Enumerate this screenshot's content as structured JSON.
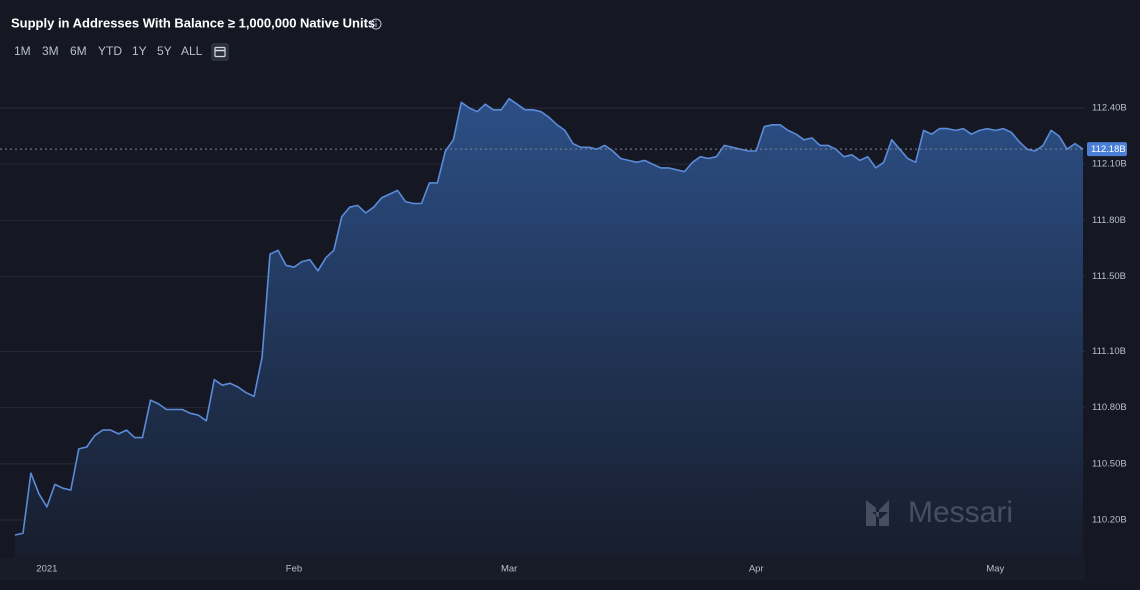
{
  "title": "Supply in Addresses With Balance ≥ 1,000,000 Native Units",
  "range_buttons": [
    "1M",
    "3M",
    "6M",
    "YTD",
    "1Y",
    "5Y",
    "ALL"
  ],
  "watermark": "Messari",
  "chart_data": {
    "type": "area",
    "color": "#5b8bd8",
    "grid": true,
    "ylim": [
      110.0,
      112.6
    ],
    "yticks": [
      {
        "value": 110.2,
        "label": "110.20B"
      },
      {
        "value": 110.5,
        "label": "110.50B"
      },
      {
        "value": 110.8,
        "label": "110.80B"
      },
      {
        "value": 111.1,
        "label": "111.10B"
      },
      {
        "value": 111.5,
        "label": "111.50B"
      },
      {
        "value": 111.8,
        "label": "111.80B"
      },
      {
        "value": 112.1,
        "label": "112.10B"
      },
      {
        "value": 112.4,
        "label": "112.40B"
      }
    ],
    "current_label": {
      "value": 112.18,
      "label": "112.18B"
    },
    "categories": [
      null,
      null,
      null,
      null,
      "2021",
      null,
      null,
      null,
      null,
      null,
      null,
      null,
      null,
      null,
      null,
      null,
      null,
      null,
      null,
      null,
      null,
      null,
      null,
      null,
      null,
      null,
      null,
      null,
      null,
      null,
      null,
      null,
      null,
      null,
      null,
      "Feb",
      null,
      null,
      null,
      null,
      null,
      null,
      null,
      null,
      null,
      null,
      null,
      null,
      null,
      null,
      null,
      null,
      null,
      null,
      null,
      null,
      null,
      null,
      null,
      null,
      null,
      null,
      "Mar",
      null,
      null,
      null,
      null,
      null,
      null,
      null,
      null,
      null,
      null,
      null,
      null,
      null,
      null,
      null,
      null,
      null,
      null,
      null,
      null,
      null,
      null,
      null,
      null,
      null,
      null,
      null,
      null,
      null,
      null,
      "Apr",
      null,
      null,
      null,
      null,
      null,
      null,
      null,
      null,
      null,
      null,
      null,
      null,
      null,
      null,
      null,
      null,
      null,
      null,
      null,
      null,
      null,
      null,
      null,
      null,
      null,
      null,
      null,
      null,
      null,
      "May",
      null,
      null,
      null,
      null,
      null,
      null,
      null,
      null,
      null,
      null,
      null
    ],
    "values": [
      110.12,
      110.13,
      110.45,
      110.34,
      110.27,
      110.39,
      110.37,
      110.36,
      110.58,
      110.59,
      110.65,
      110.68,
      110.68,
      110.66,
      110.68,
      110.64,
      110.64,
      110.84,
      110.82,
      110.79,
      110.79,
      110.79,
      110.77,
      110.76,
      110.73,
      110.95,
      110.92,
      110.93,
      110.91,
      110.88,
      110.86,
      111.07,
      111.62,
      111.64,
      111.56,
      111.55,
      111.58,
      111.59,
      111.53,
      111.6,
      111.64,
      111.82,
      111.87,
      111.88,
      111.84,
      111.87,
      111.92,
      111.94,
      111.96,
      111.9,
      111.89,
      111.89,
      112.0,
      112.0,
      112.17,
      112.23,
      112.43,
      112.4,
      112.38,
      112.42,
      112.39,
      112.39,
      112.45,
      112.42,
      112.39,
      112.39,
      112.38,
      112.35,
      112.31,
      112.28,
      112.21,
      112.19,
      112.19,
      112.18,
      112.2,
      112.17,
      112.13,
      112.12,
      112.11,
      112.12,
      112.1,
      112.08,
      112.08,
      112.07,
      112.06,
      112.11,
      112.14,
      112.13,
      112.14,
      112.2,
      112.19,
      112.18,
      112.17,
      112.17,
      112.3,
      112.31,
      112.31,
      112.28,
      112.26,
      112.23,
      112.24,
      112.2,
      112.2,
      112.18,
      112.14,
      112.15,
      112.12,
      112.14,
      112.08,
      112.11,
      112.23,
      112.18,
      112.13,
      112.11,
      112.28,
      112.26,
      112.29,
      112.29,
      112.28,
      112.29,
      112.26,
      112.28,
      112.29,
      112.28,
      112.29,
      112.27,
      112.22,
      112.18,
      112.17,
      112.2,
      112.28,
      112.25,
      112.18,
      112.21,
      112.18
    ]
  }
}
